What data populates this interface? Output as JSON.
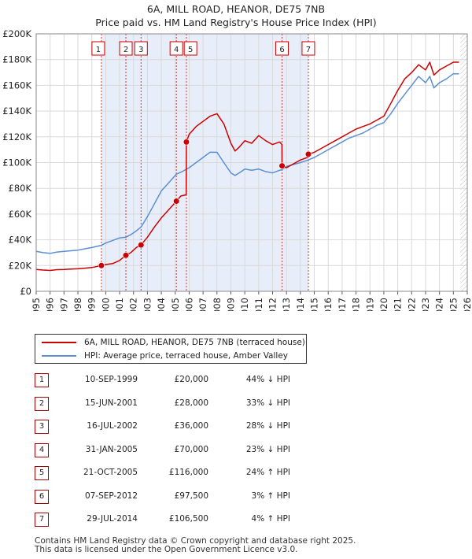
{
  "title_line1": "6A, MILL ROAD, HEANOR, DE75 7NB",
  "title_line2": "Price paid vs. HM Land Registry's House Price Index (HPI)",
  "colors": {
    "property": "#cc0000",
    "hpi": "#5b8fd1",
    "shade": "#e8eef9",
    "grid": "#d9d9d9"
  },
  "legend": {
    "property_label": "6A, MILL ROAD, HEANOR, DE75 7NB (terraced house)",
    "hpi_label": "HPI: Average price, terraced house, Amber Valley"
  },
  "transactions": [
    {
      "num": "1",
      "date": "10-SEP-1999",
      "price": "£20,000",
      "hpi_rel": "44% ↓ HPI"
    },
    {
      "num": "2",
      "date": "15-JUN-2001",
      "price": "£28,000",
      "hpi_rel": "33% ↓ HPI"
    },
    {
      "num": "3",
      "date": "16-JUL-2002",
      "price": "£36,000",
      "hpi_rel": "28% ↓ HPI"
    },
    {
      "num": "4",
      "date": "31-JAN-2005",
      "price": "£70,000",
      "hpi_rel": "23% ↓ HPI"
    },
    {
      "num": "5",
      "date": "21-OCT-2005",
      "price": "£116,000",
      "hpi_rel": "24% ↑ HPI"
    },
    {
      "num": "6",
      "date": "07-SEP-2012",
      "price": "£97,500",
      "hpi_rel": "3% ↑ HPI"
    },
    {
      "num": "7",
      "date": "29-JUL-2014",
      "price": "£106,500",
      "hpi_rel": "4% ↑ HPI"
    }
  ],
  "footer": {
    "line1": "Contains HM Land Registry data © Crown copyright and database right 2025.",
    "line2": "This data is licensed under the Open Government Licence v3.0."
  },
  "chart_data": {
    "type": "line",
    "title": "6A, MILL ROAD, HEANOR, DE75 7NB — Price paid vs. HM Land Registry's House Price Index (HPI)",
    "xlim": [
      1995,
      2026
    ],
    "ylim": [
      0,
      200000
    ],
    "xticks": [
      "1995",
      "1996",
      "1997",
      "1998",
      "1999",
      "2000",
      "2001",
      "2002",
      "2003",
      "2004",
      "2005",
      "2006",
      "2007",
      "2008",
      "2009",
      "2010",
      "2011",
      "2012",
      "2013",
      "2014",
      "2015",
      "2016",
      "2017",
      "2018",
      "2019",
      "2020",
      "2021",
      "2022",
      "2023",
      "2024",
      "2025",
      "2026"
    ],
    "yticks": [
      {
        "v": 0,
        "label": "£0"
      },
      {
        "v": 20000,
        "label": "£20K"
      },
      {
        "v": 40000,
        "label": "£40K"
      },
      {
        "v": 60000,
        "label": "£60K"
      },
      {
        "v": 80000,
        "label": "£80K"
      },
      {
        "v": 100000,
        "label": "£100K"
      },
      {
        "v": 120000,
        "label": "£120K"
      },
      {
        "v": 140000,
        "label": "£140K"
      },
      {
        "v": 160000,
        "label": "£160K"
      },
      {
        "v": 180000,
        "label": "£180K"
      },
      {
        "v": 200000,
        "label": "£200K"
      }
    ],
    "shaded_region": [
      1999.7,
      2014.6
    ],
    "future_hatch_from": 2025.5,
    "sales": [
      {
        "num": "1",
        "x": 1999.69,
        "y": 20000
      },
      {
        "num": "2",
        "x": 2001.45,
        "y": 28000
      },
      {
        "num": "3",
        "x": 2002.54,
        "y": 36000
      },
      {
        "num": "4",
        "x": 2005.08,
        "y": 70000
      },
      {
        "num": "5",
        "x": 2005.8,
        "y": 116000
      },
      {
        "num": "6",
        "x": 2012.68,
        "y": 97500
      },
      {
        "num": "7",
        "x": 2014.57,
        "y": 106500
      }
    ],
    "series": [
      {
        "name": "6A, MILL ROAD, HEANOR, DE75 7NB (terraced house)",
        "x": [
          1995,
          1995.5,
          1996,
          1996.5,
          1997,
          1997.5,
          1998,
          1998.5,
          1999,
          1999.69,
          2000,
          2000.5,
          2001,
          2001.45,
          2001.8,
          2002.2,
          2002.54,
          2003,
          2003.5,
          2004,
          2004.5,
          2005.08,
          2005.4,
          2005.79,
          2005.8,
          2006,
          2006.5,
          2007,
          2007.5,
          2008,
          2008.5,
          2009,
          2009.3,
          2009.6,
          2010,
          2010.5,
          2011,
          2011.5,
          2012,
          2012.5,
          2012.67,
          2012.68,
          2013,
          2013.5,
          2014,
          2014.5,
          2014.57,
          2015,
          2015.5,
          2016,
          2016.5,
          2017,
          2017.5,
          2018,
          2018.5,
          2019,
          2019.5,
          2020,
          2020.5,
          2021,
          2021.5,
          2022,
          2022.5,
          2023,
          2023.3,
          2023.6,
          2024,
          2024.5,
          2025,
          2025.4
        ],
        "values": [
          17000,
          16500,
          16200,
          16800,
          17000,
          17300,
          17500,
          18000,
          18500,
          20000,
          20800,
          21500,
          24000,
          28000,
          30000,
          34000,
          36000,
          42000,
          50000,
          57000,
          63000,
          70000,
          74000,
          75000,
          116000,
          122000,
          128000,
          132000,
          136000,
          138000,
          130000,
          115000,
          109000,
          112000,
          117000,
          115000,
          121000,
          117000,
          114000,
          116000,
          114000,
          97500,
          96000,
          99000,
          102000,
          104000,
          106500,
          108000,
          111000,
          114000,
          117000,
          120000,
          123000,
          126000,
          128000,
          130000,
          133000,
          136000,
          146000,
          156000,
          165000,
          170000,
          176000,
          172000,
          178000,
          168000,
          172000,
          175000,
          178000,
          178000
        ]
      },
      {
        "name": "HPI: Average price, terraced house, Amber Valley",
        "x": [
          1995,
          1995.5,
          1996,
          1996.5,
          1997,
          1997.5,
          1998,
          1998.5,
          1999,
          1999.69,
          2000,
          2000.5,
          2001,
          2001.45,
          2001.8,
          2002.2,
          2002.54,
          2003,
          2003.5,
          2004,
          2004.5,
          2005.08,
          2005.5,
          2006,
          2006.5,
          2007,
          2007.5,
          2008,
          2008.5,
          2009,
          2009.3,
          2009.6,
          2010,
          2010.5,
          2011,
          2011.5,
          2012,
          2012.5,
          2012.68,
          2013,
          2013.5,
          2014,
          2014.57,
          2015,
          2015.5,
          2016,
          2016.5,
          2017,
          2017.5,
          2018,
          2018.5,
          2019,
          2019.5,
          2020,
          2020.5,
          2021,
          2021.5,
          2022,
          2022.5,
          2023,
          2023.3,
          2023.6,
          2024,
          2024.5,
          2025,
          2025.4
        ],
        "values": [
          31000,
          30000,
          29500,
          30500,
          31000,
          31500,
          32000,
          33000,
          34000,
          35700,
          37500,
          39500,
          41500,
          42000,
          44000,
          47000,
          50000,
          58000,
          68000,
          78000,
          84000,
          91000,
          93000,
          96000,
          100000,
          104000,
          108000,
          108000,
          100000,
          92000,
          90000,
          92000,
          95000,
          94000,
          95000,
          93000,
          92000,
          94000,
          94500,
          97000,
          98500,
          100000,
          102000,
          104000,
          107000,
          110000,
          113000,
          116000,
          119000,
          121000,
          123000,
          126000,
          129000,
          131000,
          138000,
          146000,
          153000,
          160000,
          167000,
          162000,
          167000,
          158000,
          162000,
          165000,
          169000,
          169000
        ]
      }
    ]
  }
}
